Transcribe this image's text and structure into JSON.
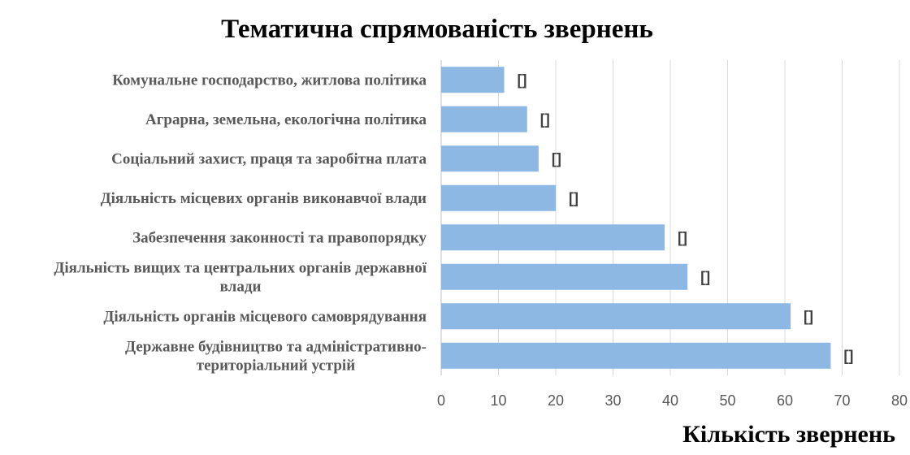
{
  "chart_data": {
    "type": "bar",
    "orientation": "horizontal",
    "title": "Тематична спрямованість звернень",
    "xlabel": "Кількість звернень",
    "ylabel": "",
    "xlim": [
      0,
      80
    ],
    "xticks": [
      0,
      10,
      20,
      30,
      40,
      50,
      60,
      70,
      80
    ],
    "grid": true,
    "legend": "none",
    "bar_color": "#8DB8E3",
    "categories": [
      [
        "Комунальне господарство, житлова політика"
      ],
      [
        "Аграрна, земельна, екологічна політика"
      ],
      [
        "Соціальний захист, праця та заробітна плата"
      ],
      [
        "Діяльність місцевих органів виконавчої влади"
      ],
      [
        "Забезпечення законності та правопорядку"
      ],
      [
        "Діяльність вищих та центральних органів державної",
        "влади"
      ],
      [
        "Діяльність органів місцевого самоврядування"
      ],
      [
        "Державне будівництво та адміністративно-",
        "територіальний устрій"
      ]
    ],
    "values": [
      11,
      15,
      17,
      20,
      39,
      43,
      61,
      68
    ],
    "data_labels": [
      "[]",
      "[]",
      "[]",
      "[]",
      "[]",
      "[]",
      "[]",
      "[]"
    ]
  }
}
